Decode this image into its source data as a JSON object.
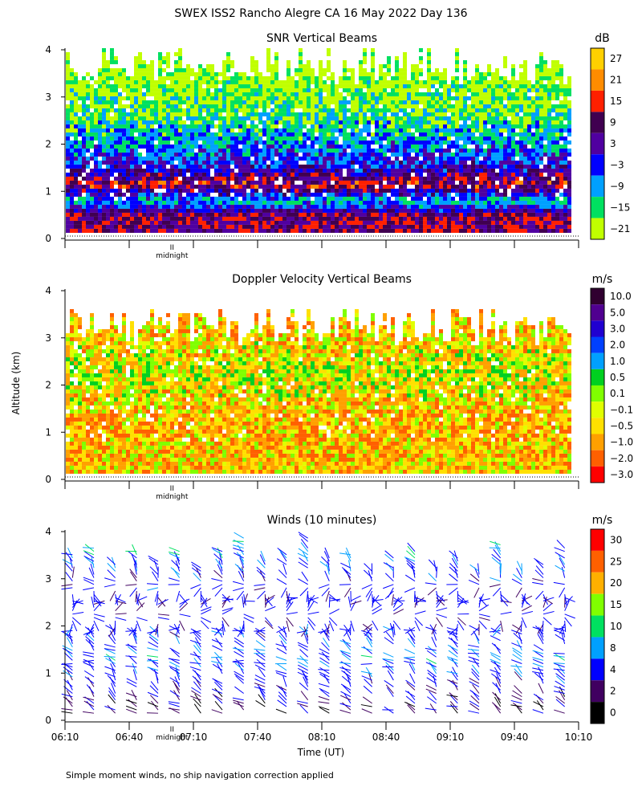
{
  "figure": {
    "title": "SWEX ISS2 Rancho Alegre CA  16 May 2022 Day 136",
    "ylabel": "Altitude (km)",
    "xlabel": "Time (UT)",
    "midnight_label": "midnight",
    "midnight_marker": "II",
    "footnote": "Simple moment winds, no ship navigation correction applied"
  },
  "chart_data": [
    {
      "type": "heatmap",
      "title": "SNR Vertical Beams",
      "unit": "dB",
      "time_range": [
        "06:10",
        "10:10"
      ],
      "x_ticks": [
        "06:10",
        "06:40",
        "07:10",
        "07:40",
        "08:10",
        "08:40",
        "09:10",
        "09:40",
        "10:10"
      ],
      "ylim": [
        0,
        4
      ],
      "y_ticks": [
        0,
        1,
        2,
        3,
        4
      ],
      "midnight_time": "07:00",
      "colorbar": {
        "labels": [
          "27",
          "21",
          "15",
          "9",
          "3",
          "−3",
          "−9",
          "−15",
          "−21"
        ],
        "colors": [
          "#ffd000",
          "#ff8c00",
          "#ff2000",
          "#400050",
          "#5000a0",
          "#0000ff",
          "#00a0ff",
          "#00e060",
          "#c0ff00"
        ]
      },
      "profile": [
        {
          "alt_km": 0.45,
          "snr_db": 12
        },
        {
          "alt_km": 0.75,
          "snr_db": -8
        },
        {
          "alt_km": 1.1,
          "snr_db": 16
        },
        {
          "alt_km": 1.5,
          "snr_db": 2
        },
        {
          "alt_km": 2.0,
          "snr_db": -6
        },
        {
          "alt_km": 2.5,
          "snr_db": -12
        },
        {
          "alt_km": 3.0,
          "snr_db": -16
        },
        {
          "alt_km": 3.6,
          "snr_db": -20
        }
      ],
      "echo_top_km": 3.7
    },
    {
      "type": "heatmap",
      "title": "Doppler Velocity Vertical Beams",
      "unit": "m/s",
      "time_range": [
        "06:10",
        "10:10"
      ],
      "ylim": [
        0,
        4
      ],
      "y_ticks": [
        0,
        1,
        2,
        3,
        4
      ],
      "midnight_time": "07:00",
      "colorbar": {
        "labels": [
          "10.0",
          "5.0",
          "3.0",
          "2.0",
          "1.0",
          "0.5",
          "0.1",
          "−0.1",
          "−0.5",
          "−1.0",
          "−2.0",
          "−3.0"
        ],
        "colors": [
          "#300030",
          "#500090",
          "#2000d0",
          "#0040ff",
          "#00a0ff",
          "#00d020",
          "#80ff00",
          "#e0ff00",
          "#ffe000",
          "#ffa000",
          "#ff6000",
          "#ff0000"
        ]
      },
      "profile": [
        {
          "alt_km": 0.3,
          "w_ms": -0.4
        },
        {
          "alt_km": 1.0,
          "w_ms": -0.7
        },
        {
          "alt_km": 1.7,
          "w_ms": -0.3
        },
        {
          "alt_km": 2.2,
          "w_ms": 0.05
        },
        {
          "alt_km": 2.7,
          "w_ms": -0.3
        },
        {
          "alt_km": 3.2,
          "w_ms": -0.5
        }
      ],
      "echo_top_km": 3.3
    },
    {
      "type": "scatter",
      "title": "Winds (10 minutes)",
      "unit": "m/s",
      "time_range": [
        "06:10",
        "10:10"
      ],
      "x_ticks": [
        "06:10",
        "06:40",
        "07:10",
        "07:40",
        "08:10",
        "08:40",
        "09:10",
        "09:40",
        "10:10"
      ],
      "ylim": [
        0,
        4
      ],
      "y_ticks": [
        0,
        1,
        2,
        3,
        4
      ],
      "midnight_time": "07:00",
      "interval_min": 10,
      "colorbar": {
        "labels": [
          "30",
          "25",
          "20",
          "15",
          "10",
          "8",
          "4",
          "2",
          "0"
        ],
        "colors": [
          "#ff0000",
          "#ff6000",
          "#ffb000",
          "#80ff00",
          "#00e060",
          "#00a0ff",
          "#0000ff",
          "#400060",
          "#000000"
        ]
      },
      "profile": [
        {
          "alt_km": 0.3,
          "speed_ms": 3,
          "dir_deg": 300
        },
        {
          "alt_km": 0.8,
          "speed_ms": 6,
          "dir_deg": 320
        },
        {
          "alt_km": 1.3,
          "speed_ms": 8,
          "dir_deg": 290
        },
        {
          "alt_km": 1.8,
          "speed_ms": 6,
          "dir_deg": 330
        },
        {
          "alt_km": 2.4,
          "speed_ms": 5,
          "dir_deg": 10
        },
        {
          "alt_km": 3.0,
          "speed_ms": 6,
          "dir_deg": 340
        },
        {
          "alt_km": 3.6,
          "speed_ms": 9,
          "dir_deg": 300
        }
      ]
    }
  ]
}
